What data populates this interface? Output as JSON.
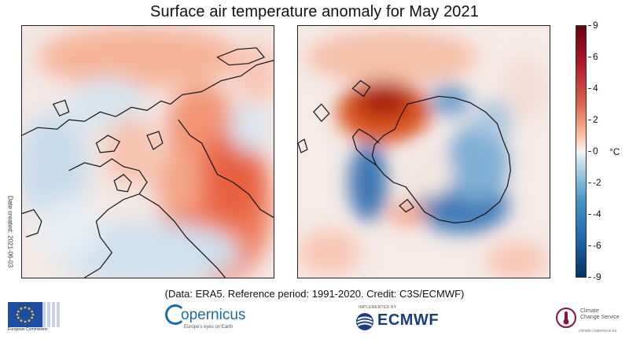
{
  "title": "Surface air temperature anomaly for May 2021",
  "side_note": "Date created: 2021-06-03",
  "caption": "(Data: ERA5.  Reference period: 1991-2020.  Credit: C3S/ECMWF)",
  "colorbar": {
    "unit": "°C",
    "ticks": [
      "9",
      "6",
      "4",
      "2",
      "0",
      "-2",
      "-4",
      "-6",
      "-9"
    ],
    "colors": [
      "#67000d",
      "#b2182b",
      "#d6604d",
      "#f4a582",
      "#f7f7f7",
      "#92c5de",
      "#4393c3",
      "#2166ac",
      "#053061"
    ]
  },
  "maps": {
    "arctic": {
      "region": "Northern polar region"
    },
    "antarctic": {
      "region": "Southern polar region"
    }
  },
  "logos": {
    "eu": {
      "text": "European Commission"
    },
    "copernicus": {
      "name": "opernicus",
      "tagline": "Europe's eyes on Earth"
    },
    "ecmwf": {
      "implemented": "IMPLEMENTED BY",
      "name": "ECMWF"
    },
    "c3s": {
      "line1": "Climate",
      "line2": "Change Service",
      "url": "climate.copernicus.eu"
    }
  }
}
